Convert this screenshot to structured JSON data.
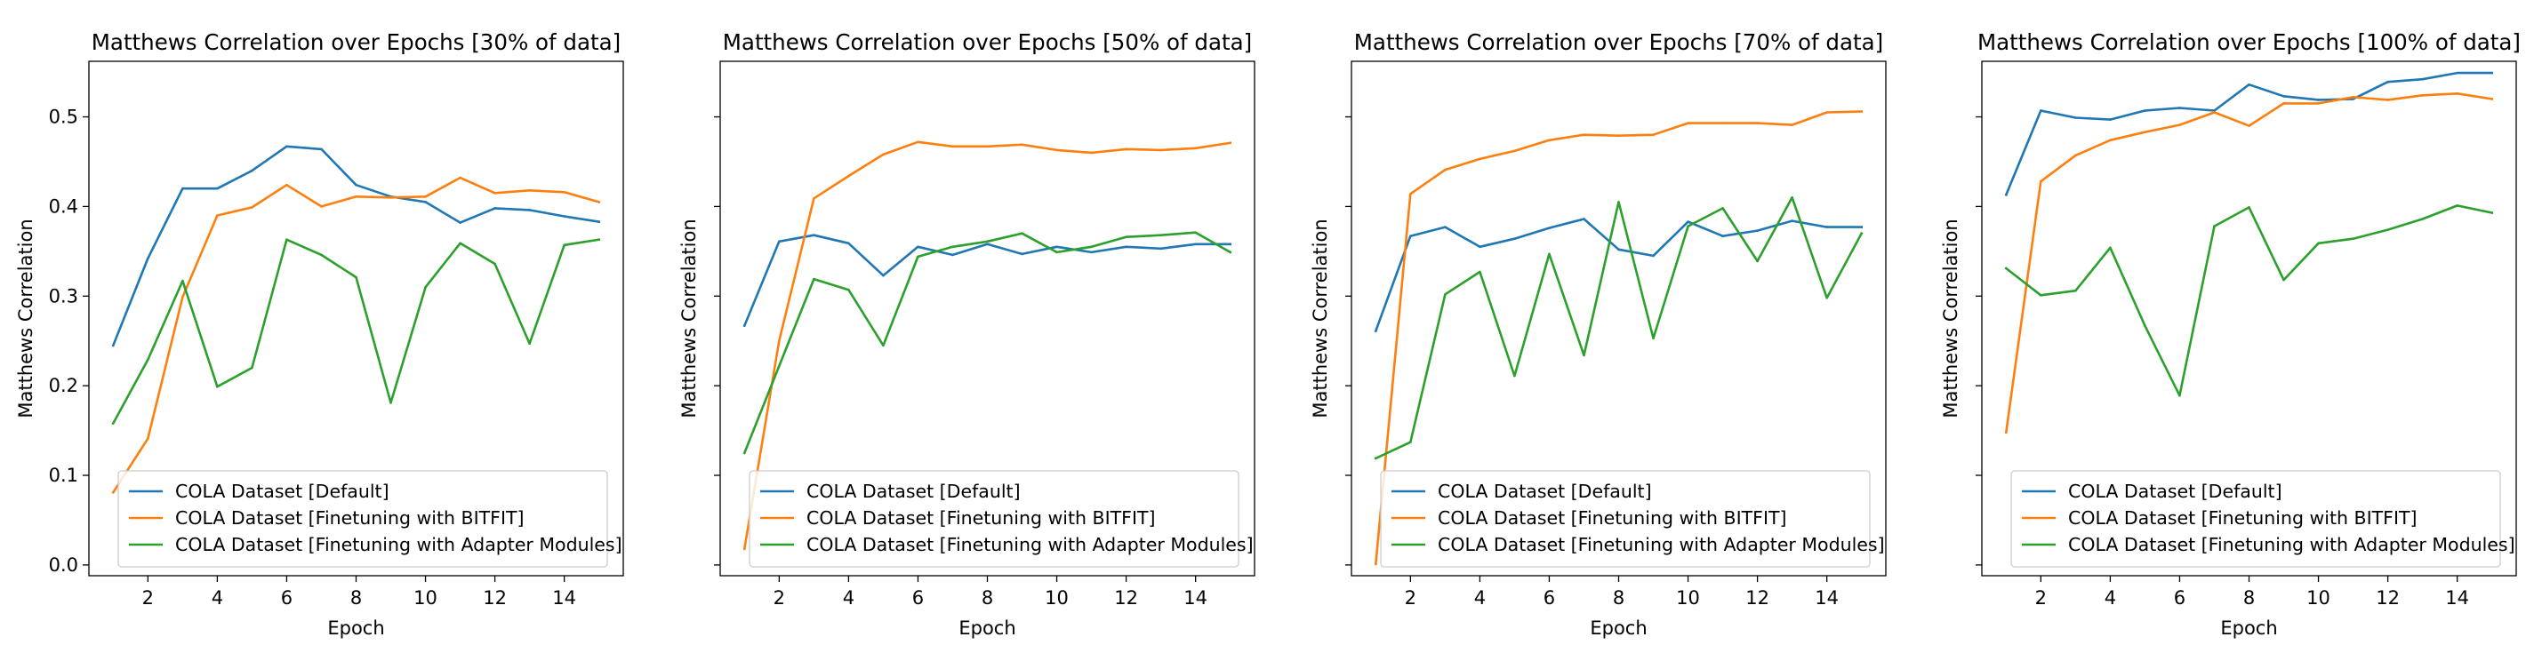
{
  "figure": {
    "shared_ylabel": "Matthews Correlation",
    "shared_xlabel": "Epoch"
  },
  "legend_entries": [
    "COLA Dataset [Default]",
    "COLA Dataset [Finetuning with BITFIT]",
    "COLA Dataset [Finetuning with Adapter Modules]"
  ],
  "colors": {
    "default": "#1f77b4",
    "bitfit": "#ff7f0e",
    "adapter": "#2ca02c"
  },
  "chart_data": [
    {
      "type": "line",
      "title": "Matthews Correlation over Epochs [30% of data]",
      "xlabel": "Epoch",
      "ylabel": "Matthews Correlation",
      "x": [
        1,
        2,
        3,
        4,
        5,
        6,
        7,
        8,
        9,
        10,
        11,
        12,
        13,
        14,
        15
      ],
      "xticks": [
        2,
        4,
        6,
        8,
        10,
        12,
        14
      ],
      "yticks": [
        "0.0",
        "0.1",
        "0.2",
        "0.3",
        "0.4",
        "0.5"
      ],
      "ytick_labels_visible": true,
      "ylim": [
        -0.012,
        0.562
      ],
      "xlim": [
        0.3,
        15.7
      ],
      "legend": "lower center",
      "series": [
        {
          "name": "COLA Dataset [Default]",
          "values": [
            0.245,
            0.342,
            0.42,
            0.42,
            0.44,
            0.467,
            0.464,
            0.424,
            0.411,
            0.405,
            0.382,
            0.398,
            0.396,
            0.389,
            0.383
          ]
        },
        {
          "name": "COLA Dataset [Finetuning with BITFIT]",
          "values": [
            0.081,
            0.141,
            0.299,
            0.39,
            0.399,
            0.424,
            0.4,
            0.411,
            0.41,
            0.411,
            0.432,
            0.415,
            0.418,
            0.416,
            0.405
          ]
        },
        {
          "name": "COLA Dataset [Finetuning with Adapter Modules]",
          "values": [
            0.158,
            0.229,
            0.317,
            0.199,
            0.22,
            0.363,
            0.346,
            0.321,
            0.181,
            0.31,
            0.359,
            0.336,
            0.247,
            0.357,
            0.363
          ]
        }
      ]
    },
    {
      "type": "line",
      "title": "Matthews Correlation over Epochs [50% of data]",
      "xlabel": "Epoch",
      "ylabel": "Matthews Correlation",
      "x": [
        1,
        2,
        3,
        4,
        5,
        6,
        7,
        8,
        9,
        10,
        11,
        12,
        13,
        14,
        15
      ],
      "xticks": [
        2,
        4,
        6,
        8,
        10,
        12,
        14
      ],
      "yticks": [
        "0.0",
        "0.1",
        "0.2",
        "0.3",
        "0.4",
        "0.5"
      ],
      "ytick_labels_visible": false,
      "ylim": [
        -0.012,
        0.562
      ],
      "xlim": [
        0.3,
        15.7
      ],
      "legend": "lower center",
      "series": [
        {
          "name": "COLA Dataset [Default]",
          "values": [
            0.267,
            0.361,
            0.368,
            0.359,
            0.323,
            0.355,
            0.346,
            0.358,
            0.347,
            0.355,
            0.349,
            0.355,
            0.353,
            0.358,
            0.358
          ]
        },
        {
          "name": "COLA Dataset [Finetuning with BITFIT]",
          "values": [
            0.018,
            0.25,
            0.409,
            0.434,
            0.458,
            0.472,
            0.467,
            0.467,
            0.469,
            0.463,
            0.46,
            0.464,
            0.463,
            0.465,
            0.471
          ]
        },
        {
          "name": "COLA Dataset [Finetuning with Adapter Modules]",
          "values": [
            0.125,
            0.222,
            0.319,
            0.307,
            0.245,
            0.344,
            0.355,
            0.361,
            0.37,
            0.349,
            0.355,
            0.366,
            0.368,
            0.371,
            0.349
          ]
        }
      ]
    },
    {
      "type": "line",
      "title": "Matthews Correlation over Epochs [70% of data]",
      "xlabel": "Epoch",
      "ylabel": "Matthews Correlation",
      "x": [
        1,
        2,
        3,
        4,
        5,
        6,
        7,
        8,
        9,
        10,
        11,
        12,
        13,
        14,
        15
      ],
      "xticks": [
        2,
        4,
        6,
        8,
        10,
        12,
        14
      ],
      "yticks": [
        "0.0",
        "0.1",
        "0.2",
        "0.3",
        "0.4",
        "0.5"
      ],
      "ytick_labels_visible": false,
      "ylim": [
        -0.012,
        0.562
      ],
      "xlim": [
        0.3,
        15.7
      ],
      "legend": "lower center",
      "series": [
        {
          "name": "COLA Dataset [Default]",
          "values": [
            0.261,
            0.367,
            0.377,
            0.355,
            0.364,
            0.376,
            0.386,
            0.352,
            0.345,
            0.383,
            0.367,
            0.373,
            0.384,
            0.377,
            0.377
          ]
        },
        {
          "name": "COLA Dataset [Finetuning with BITFIT]",
          "values": [
            0.001,
            0.414,
            0.441,
            0.453,
            0.462,
            0.474,
            0.48,
            0.479,
            0.48,
            0.493,
            0.493,
            0.493,
            0.491,
            0.505,
            0.506
          ]
        },
        {
          "name": "COLA Dataset [Finetuning with Adapter Modules]",
          "values": [
            0.119,
            0.137,
            0.302,
            0.327,
            0.211,
            0.347,
            0.234,
            0.405,
            0.253,
            0.378,
            0.398,
            0.339,
            0.41,
            0.298,
            0.37
          ]
        }
      ]
    },
    {
      "type": "line",
      "title": "Matthews Correlation over Epochs [100% of data]",
      "xlabel": "Epoch",
      "ylabel": "Matthews Correlation",
      "x": [
        1,
        2,
        3,
        4,
        5,
        6,
        7,
        8,
        9,
        10,
        11,
        12,
        13,
        14,
        15
      ],
      "xticks": [
        2,
        4,
        6,
        8,
        10,
        12,
        14
      ],
      "yticks": [
        "0.0",
        "0.1",
        "0.2",
        "0.3",
        "0.4",
        "0.5"
      ],
      "ytick_labels_visible": false,
      "ylim": [
        -0.012,
        0.562
      ],
      "xlim": [
        0.3,
        15.7
      ],
      "legend": "lower center",
      "series": [
        {
          "name": "COLA Dataset [Default]",
          "values": [
            0.413,
            0.507,
            0.499,
            0.497,
            0.507,
            0.51,
            0.507,
            0.536,
            0.523,
            0.519,
            0.52,
            0.539,
            0.542,
            0.549,
            0.549
          ]
        },
        {
          "name": "COLA Dataset [Finetuning with BITFIT]",
          "values": [
            0.148,
            0.428,
            0.457,
            0.474,
            0.483,
            0.491,
            0.505,
            0.49,
            0.515,
            0.515,
            0.522,
            0.519,
            0.524,
            0.526,
            0.52
          ]
        },
        {
          "name": "COLA Dataset [Finetuning with Adapter Modules]",
          "values": [
            0.331,
            0.301,
            0.306,
            0.354,
            0.267,
            0.189,
            0.378,
            0.399,
            0.318,
            0.359,
            0.364,
            0.374,
            0.386,
            0.401,
            0.393
          ]
        }
      ]
    }
  ]
}
